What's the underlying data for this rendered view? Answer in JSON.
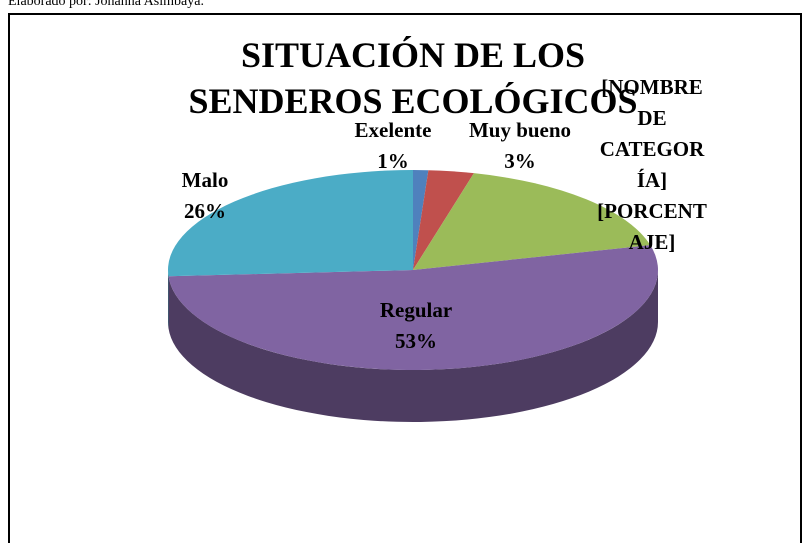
{
  "source": "Elaborado por: Johanna Asimbaya.",
  "chart_data": {
    "type": "pie",
    "title": "SITUACIÓN DE LOS SENDEROS ECOLÓGICOS",
    "categories": [
      "Exelente",
      "Muy bueno",
      "[NOMBRE DE CATEGORÍA]",
      "Regular",
      "Malo"
    ],
    "values": [
      1,
      3,
      17,
      53,
      26
    ],
    "value_labels": [
      "1%",
      "3%",
      "[PORCENTAJE]",
      "53%",
      "26%"
    ],
    "colors": [
      "#4f81bd",
      "#c0504d",
      "#9bbb59",
      "#8064a2",
      "#4bacc6"
    ]
  }
}
